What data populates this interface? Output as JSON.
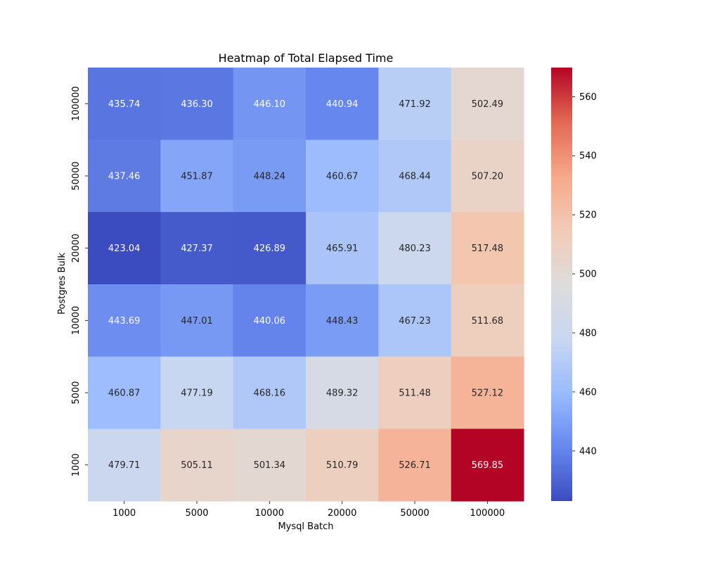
{
  "chart_data": {
    "type": "heatmap",
    "title": "Heatmap of Total Elapsed Time",
    "xlabel": "Mysql Batch",
    "ylabel": "Postgres Bulk",
    "x_categories": [
      "1000",
      "5000",
      "10000",
      "20000",
      "50000",
      "100000"
    ],
    "y_categories": [
      "100000",
      "50000",
      "20000",
      "10000",
      "5000",
      "1000"
    ],
    "values": [
      [
        435.74,
        436.3,
        446.1,
        440.94,
        471.92,
        502.49
      ],
      [
        437.46,
        451.87,
        448.24,
        460.67,
        468.44,
        507.2
      ],
      [
        423.04,
        427.37,
        426.89,
        465.91,
        480.23,
        517.48
      ],
      [
        443.69,
        447.01,
        440.06,
        448.43,
        467.23,
        511.68
      ],
      [
        460.87,
        477.19,
        468.16,
        489.32,
        511.48,
        527.12
      ],
      [
        479.71,
        505.11,
        501.34,
        510.79,
        526.71,
        569.85
      ]
    ],
    "value_format": "0.00",
    "colormap": "coolwarm",
    "colormap_stops": [
      "#3b4cc0",
      "#6788ee",
      "#9abbff",
      "#c9d7f0",
      "#dddcdc",
      "#f2cbb7",
      "#f7a889",
      "#e26952",
      "#b40426"
    ],
    "colorbar": {
      "vmin": 423.04,
      "vmax": 569.85,
      "ticks": [
        "440",
        "460",
        "480",
        "500",
        "520",
        "540",
        "560"
      ]
    },
    "grid": false,
    "legend": "colorbar-right"
  }
}
